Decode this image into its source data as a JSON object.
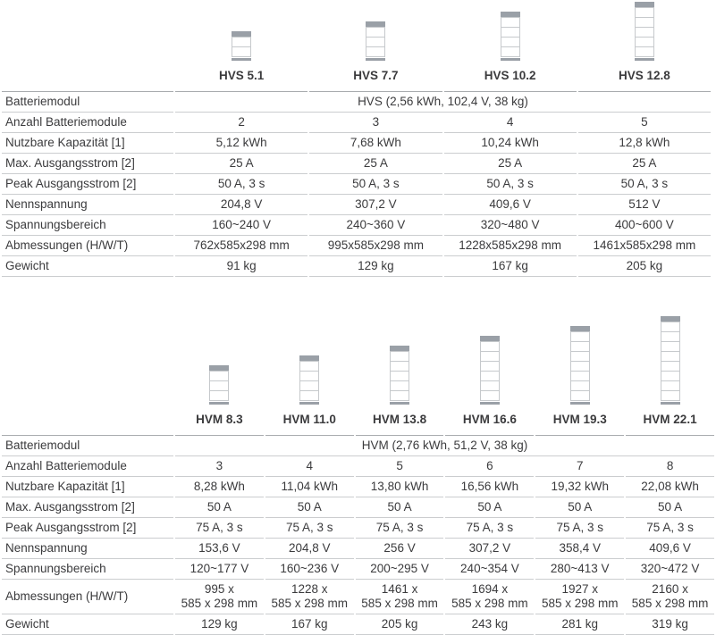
{
  "colors": {
    "text": "#3b3b3d",
    "row_line": "#cbcdcf",
    "header_line": "#a9acaf",
    "tower_cap": "#9aa0a7",
    "tower_module_border": "#c6c9cc"
  },
  "tables": [
    {
      "id": "hvs",
      "label_col_width": 192,
      "models": [
        {
          "name": "HVS 5.1",
          "modules": 2
        },
        {
          "name": "HVS 7.7",
          "modules": 3
        },
        {
          "name": "HVS 10.2",
          "modules": 4
        },
        {
          "name": "HVS 12.8",
          "modules": 5
        }
      ],
      "span_row": {
        "label": "Batteriemodul",
        "value": "HVS (2,56 kWh, 102,4 V, 38 kg)"
      },
      "rows": [
        {
          "label": "Anzahl Batteriemodule",
          "values": [
            "2",
            "3",
            "4",
            "5"
          ]
        },
        {
          "label": "Nutzbare Kapazität [1]",
          "values": [
            "5,12 kWh",
            "7,68 kWh",
            "10,24 kWh",
            "12,8 kWh"
          ]
        },
        {
          "label": "Max. Ausgangsstrom [2]",
          "values": [
            "25 A",
            "25 A",
            "25 A",
            "25 A"
          ]
        },
        {
          "label": "Peak Ausgangsstrom [2]",
          "values": [
            "50 A, 3 s",
            "50 A, 3 s",
            "50 A, 3 s",
            "50 A, 3 s"
          ]
        },
        {
          "label": "Nennspannung",
          "values": [
            "204,8 V",
            "307,2 V",
            "409,6 V",
            "512 V"
          ]
        },
        {
          "label": "Spannungsbereich",
          "values": [
            "160~240 V",
            "240~360 V",
            "320~480 V",
            "400~600 V"
          ]
        },
        {
          "label": "Abmessungen (H/W/T)",
          "values": [
            "762x585x298 mm",
            "995x585x298 mm",
            "1228x585x298 mm",
            "1461x585x298 mm"
          ]
        },
        {
          "label": "Gewicht",
          "values": [
            "91 kg",
            "129 kg",
            "167 kg",
            "205 kg"
          ]
        }
      ]
    },
    {
      "id": "hvm",
      "label_col_width": 192,
      "models": [
        {
          "name": "HVM 8.3",
          "modules": 3
        },
        {
          "name": "HVM 11.0",
          "modules": 4
        },
        {
          "name": "HVM 13.8",
          "modules": 5
        },
        {
          "name": "HVM 16.6",
          "modules": 6
        },
        {
          "name": "HVM 19.3",
          "modules": 7
        },
        {
          "name": "HVM 22.1",
          "modules": 8
        }
      ],
      "span_row": {
        "label": "Batteriemodul",
        "value": "HVM (2,76 kWh, 51,2 V, 38 kg)"
      },
      "rows": [
        {
          "label": "Anzahl Batteriemodule",
          "values": [
            "3",
            "4",
            "5",
            "6",
            "7",
            "8"
          ]
        },
        {
          "label": "Nutzbare Kapazität [1]",
          "values": [
            "8,28 kWh",
            "11,04 kWh",
            "13,80 kWh",
            "16,56 kWh",
            "19,32 kWh",
            "22,08 kWh"
          ]
        },
        {
          "label": "Max. Ausgangsstrom [2]",
          "values": [
            "50 A",
            "50 A",
            "50 A",
            "50 A",
            "50 A",
            "50 A"
          ]
        },
        {
          "label": "Peak Ausgangsstrom [2]",
          "values": [
            "75 A, 3 s",
            "75 A, 3 s",
            "75 A, 3 s",
            "75 A, 3 s",
            "75 A, 3 s",
            "75 A, 3 s"
          ]
        },
        {
          "label": "Nennspannung",
          "values": [
            "153,6 V",
            "204,8 V",
            "256 V",
            "307,2 V",
            "358,4 V",
            "409,6 V"
          ]
        },
        {
          "label": "Spannungsbereich",
          "values": [
            "120~177 V",
            "160~236 V",
            "200~295 V",
            "240~354 V",
            "280~413 V",
            "320~472 V"
          ]
        },
        {
          "label": "Abmessungen (H/W/T)",
          "values": [
            "995 x\n585 x 298 mm",
            "1228 x\n585 x 298 mm",
            "1461 x\n585 x 298 mm",
            "1694 x\n585 x 298 mm",
            "1927 x\n585 x 298 mm",
            "2160 x\n585 x 298 mm"
          ]
        },
        {
          "label": "Gewicht",
          "values": [
            "129 kg",
            "167 kg",
            "205 kg",
            "243 kg",
            "281 kg",
            "319 kg"
          ]
        }
      ]
    }
  ]
}
